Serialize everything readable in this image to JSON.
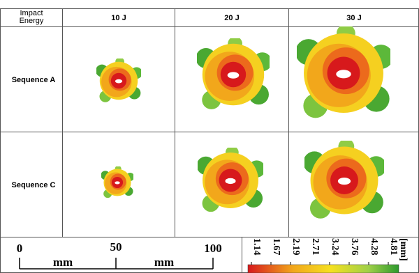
{
  "table": {
    "header": [
      "Impact",
      "Energy",
      "10 J",
      "20 J",
      "30 J"
    ],
    "rows": [
      {
        "label": "Sequence A"
      },
      {
        "label": "Sequence C"
      }
    ]
  },
  "scale_bar": {
    "ticks": [
      "0",
      "50",
      "100"
    ],
    "units": [
      "mm",
      "mm"
    ]
  },
  "legend": {
    "ticks": [
      "1.14",
      "1.67",
      "2.19",
      "2.71",
      "3.24",
      "3.76",
      "4.28",
      "4.81"
    ],
    "unit": "[mm]"
  }
}
